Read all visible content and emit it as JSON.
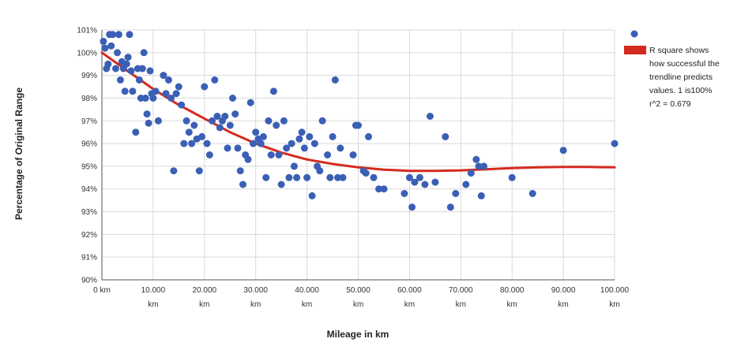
{
  "chart_data": {
    "type": "scatter",
    "title": "",
    "xlabel": "Mileage in km",
    "ylabel": "Percentage of Original Range",
    "xlim": [
      0,
      100000
    ],
    "ylim": [
      90,
      101
    ],
    "grid": true,
    "legend_position": "right",
    "x_ticks": [
      {
        "value": 0,
        "label": "0 km"
      },
      {
        "value": 10000,
        "label": "10.000\nkm"
      },
      {
        "value": 20000,
        "label": "20.000\nkm"
      },
      {
        "value": 30000,
        "label": "30.000\nkm"
      },
      {
        "value": 40000,
        "label": "40.000\nkm"
      },
      {
        "value": 50000,
        "label": "50.000\nkm"
      },
      {
        "value": 60000,
        "label": "60.000\nkm"
      },
      {
        "value": 70000,
        "label": "70.000\nkm"
      },
      {
        "value": 80000,
        "label": "80.000\nkm"
      },
      {
        "value": 90000,
        "label": "90.000\nkm"
      },
      {
        "value": 100000,
        "label": "100.000\nkm"
      }
    ],
    "y_ticks": [
      {
        "value": 90,
        "label": "90%"
      },
      {
        "value": 91,
        "label": "91%"
      },
      {
        "value": 92,
        "label": "92%"
      },
      {
        "value": 93,
        "label": "93%"
      },
      {
        "value": 94,
        "label": "94%"
      },
      {
        "value": 95,
        "label": "95%"
      },
      {
        "value": 96,
        "label": "96%"
      },
      {
        "value": 97,
        "label": "97%"
      },
      {
        "value": 98,
        "label": "98%"
      },
      {
        "value": 99,
        "label": "99%"
      },
      {
        "value": 100,
        "label": "100%"
      },
      {
        "value": 101,
        "label": "101%"
      }
    ],
    "colors": {
      "points": "#3a5fb5",
      "trend": "#d42a1e",
      "grid": "#d9d9d9",
      "axis": "#555555"
    },
    "series": [
      {
        "type": "scatter",
        "points": [
          [
            300,
            100.5
          ],
          [
            600,
            100.2
          ],
          [
            900,
            99.3
          ],
          [
            1200,
            99.5
          ],
          [
            1500,
            100.8
          ],
          [
            1800,
            100.3
          ],
          [
            2100,
            100.8
          ],
          [
            2700,
            99.3
          ],
          [
            3000,
            100.0
          ],
          [
            3300,
            100.8
          ],
          [
            3600,
            98.8
          ],
          [
            3900,
            99.6
          ],
          [
            4200,
            99.3
          ],
          [
            4500,
            98.3
          ],
          [
            4800,
            99.5
          ],
          [
            5100,
            99.8
          ],
          [
            5400,
            100.8
          ],
          [
            5700,
            99.2
          ],
          [
            6000,
            98.3
          ],
          [
            6600,
            96.5
          ],
          [
            7000,
            99.3
          ],
          [
            7300,
            98.8
          ],
          [
            7600,
            98.0
          ],
          [
            7900,
            99.3
          ],
          [
            8200,
            100.0
          ],
          [
            8500,
            98.0
          ],
          [
            8800,
            97.3
          ],
          [
            9100,
            96.9
          ],
          [
            9400,
            99.2
          ],
          [
            9700,
            98.2
          ],
          [
            10000,
            98.0
          ],
          [
            10500,
            98.3
          ],
          [
            11000,
            97.0
          ],
          [
            12000,
            99.0
          ],
          [
            12500,
            98.2
          ],
          [
            13000,
            98.8
          ],
          [
            13500,
            98.0
          ],
          [
            14000,
            94.8
          ],
          [
            14500,
            98.2
          ],
          [
            15000,
            98.5
          ],
          [
            15500,
            97.7
          ],
          [
            16000,
            96.0
          ],
          [
            16500,
            97.0
          ],
          [
            17000,
            96.5
          ],
          [
            17500,
            96.0
          ],
          [
            18000,
            96.8
          ],
          [
            18500,
            96.2
          ],
          [
            19000,
            94.8
          ],
          [
            19500,
            96.3
          ],
          [
            20000,
            98.5
          ],
          [
            20500,
            96.0
          ],
          [
            21000,
            95.5
          ],
          [
            21500,
            97.0
          ],
          [
            22000,
            98.8
          ],
          [
            22500,
            97.2
          ],
          [
            23000,
            96.7
          ],
          [
            23500,
            97.0
          ],
          [
            24000,
            97.2
          ],
          [
            24500,
            95.8
          ],
          [
            25000,
            96.8
          ],
          [
            25500,
            98.0
          ],
          [
            26000,
            97.3
          ],
          [
            26500,
            95.8
          ],
          [
            27000,
            94.8
          ],
          [
            27500,
            94.2
          ],
          [
            28000,
            95.5
          ],
          [
            28500,
            95.3
          ],
          [
            29000,
            97.8
          ],
          [
            29500,
            96.0
          ],
          [
            30000,
            96.5
          ],
          [
            30500,
            96.2
          ],
          [
            31000,
            96.0
          ],
          [
            31500,
            96.3
          ],
          [
            32000,
            94.5
          ],
          [
            32500,
            97.0
          ],
          [
            33000,
            95.5
          ],
          [
            33500,
            98.3
          ],
          [
            34000,
            96.8
          ],
          [
            34500,
            95.5
          ],
          [
            35000,
            94.2
          ],
          [
            35500,
            97.0
          ],
          [
            36000,
            95.8
          ],
          [
            36500,
            94.5
          ],
          [
            37000,
            96.0
          ],
          [
            37500,
            95.0
          ],
          [
            38000,
            94.5
          ],
          [
            38500,
            96.2
          ],
          [
            39000,
            96.5
          ],
          [
            39500,
            95.8
          ],
          [
            40000,
            94.5
          ],
          [
            40500,
            96.3
          ],
          [
            41000,
            93.7
          ],
          [
            41500,
            96.0
          ],
          [
            42000,
            95.0
          ],
          [
            42500,
            94.8
          ],
          [
            43000,
            97.0
          ],
          [
            44000,
            95.5
          ],
          [
            44500,
            94.5
          ],
          [
            45000,
            96.3
          ],
          [
            45500,
            98.8
          ],
          [
            46000,
            94.5
          ],
          [
            46500,
            95.8
          ],
          [
            47000,
            94.5
          ],
          [
            49000,
            95.5
          ],
          [
            49500,
            96.8
          ],
          [
            50000,
            96.8
          ],
          [
            51000,
            94.8
          ],
          [
            51500,
            94.7
          ],
          [
            52000,
            96.3
          ],
          [
            53000,
            94.5
          ],
          [
            54000,
            94.0
          ],
          [
            55000,
            94.0
          ],
          [
            59000,
            93.8
          ],
          [
            60000,
            94.5
          ],
          [
            60500,
            93.2
          ],
          [
            61000,
            94.3
          ],
          [
            62000,
            94.5
          ],
          [
            63000,
            94.2
          ],
          [
            64000,
            97.2
          ],
          [
            65000,
            94.3
          ],
          [
            67000,
            96.3
          ],
          [
            68000,
            93.2
          ],
          [
            69000,
            93.8
          ],
          [
            71000,
            94.2
          ],
          [
            72000,
            94.7
          ],
          [
            73000,
            95.3
          ],
          [
            73500,
            95.0
          ],
          [
            74000,
            93.7
          ],
          [
            74500,
            95.0
          ],
          [
            80000,
            94.5
          ],
          [
            84000,
            93.8
          ],
          [
            90000,
            95.7
          ],
          [
            100000,
            96.0
          ]
        ]
      },
      {
        "type": "line",
        "name": "R square shows how successful the trendline predicts values. 1 is100% r^2 = 0.679",
        "points": [
          [
            0,
            100.0
          ],
          [
            5000,
            99.2
          ],
          [
            10000,
            98.4
          ],
          [
            15000,
            97.7
          ],
          [
            20000,
            97.1
          ],
          [
            25000,
            96.5
          ],
          [
            30000,
            96.0
          ],
          [
            35000,
            95.6
          ],
          [
            40000,
            95.3
          ],
          [
            45000,
            95.1
          ],
          [
            50000,
            94.95
          ],
          [
            55000,
            94.85
          ],
          [
            60000,
            94.8
          ],
          [
            65000,
            94.8
          ],
          [
            70000,
            94.82
          ],
          [
            75000,
            94.87
          ],
          [
            80000,
            94.92
          ],
          [
            85000,
            94.95
          ],
          [
            90000,
            94.97
          ],
          [
            95000,
            94.97
          ],
          [
            100000,
            94.95
          ]
        ]
      }
    ]
  },
  "legend": {
    "lines": [
      "R square shows",
      "how successful the",
      "trendline predicts",
      "values. 1 is100%",
      "r^2 = 0.679"
    ]
  }
}
